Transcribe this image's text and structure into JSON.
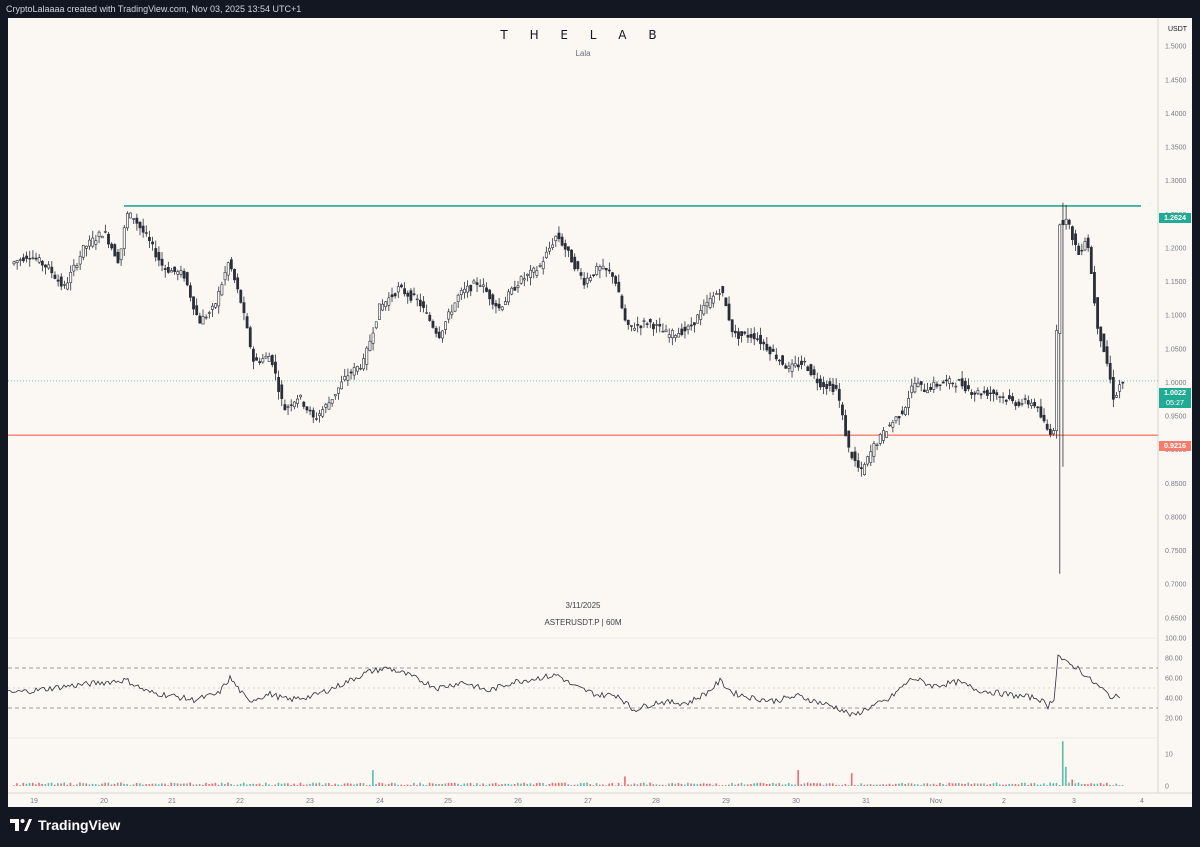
{
  "top_bar": {
    "text": "CryptoLalaaaa created with TradingView.com, Nov 03, 2025 13:54 UTC+1"
  },
  "chart_header": {
    "title": "T H E  L A B",
    "subtitle": "Lala"
  },
  "watermark": {
    "date": "3/11/2025",
    "symbol": "ASTERUSDT.P | 60M"
  },
  "price_axis": {
    "unit": "USDT",
    "ticks": [
      "1.5000",
      "1.4500",
      "1.4000",
      "1.3500",
      "1.3000",
      "1.2500",
      "1.2000",
      "1.1500",
      "1.1000",
      "1.0500",
      "1.0000",
      "0.9500",
      "0.9000",
      "0.8500",
      "0.8000",
      "0.7500",
      "0.7000",
      "0.6500"
    ],
    "tags": {
      "resistance": "1.2624",
      "current_price": "1.0022",
      "countdown": "05:27",
      "support": "0.9216"
    }
  },
  "rsi_axis": {
    "ticks": [
      "100.00",
      "80.00",
      "60.00",
      "40.00",
      "20.00"
    ]
  },
  "volume_axis": {
    "ticks": [
      "10",
      "0"
    ]
  },
  "time_axis": {
    "labels": [
      "19",
      "20",
      "21",
      "22",
      "23",
      "24",
      "25",
      "26",
      "27",
      "28",
      "29",
      "30",
      "31",
      "Nov",
      "2",
      "3",
      "4"
    ]
  },
  "colors": {
    "background": "#fbf8f4",
    "frame": "#131722",
    "resistance_line": "#22ab94",
    "support_line": "#f77c6b",
    "current_price_line": "#22ab94",
    "candle": "#2a2e39",
    "volume_up": "#22ab94",
    "volume_down": "#f23645"
  },
  "brand": {
    "name": "TradingView",
    "logo_icon": "tradingview-logo-icon"
  },
  "chart_data": {
    "type": "candlestick",
    "interval": "60M",
    "price_range": [
      0.62,
      1.53
    ],
    "levels": {
      "resistance": 1.2624,
      "support": 0.9216,
      "last": 1.0022
    },
    "price_path": [
      [
        0,
        1.175
      ],
      [
        20,
        1.19
      ],
      [
        40,
        1.17
      ],
      [
        55,
        1.14
      ],
      [
        75,
        1.2
      ],
      [
        95,
        1.225
      ],
      [
        110,
        1.18
      ],
      [
        118,
        1.25
      ],
      [
        125,
        1.245
      ],
      [
        140,
        1.21
      ],
      [
        155,
        1.17
      ],
      [
        175,
        1.16
      ],
      [
        190,
        1.09
      ],
      [
        205,
        1.11
      ],
      [
        220,
        1.18
      ],
      [
        232,
        1.12
      ],
      [
        245,
        1.03
      ],
      [
        262,
        1.04
      ],
      [
        275,
        0.96
      ],
      [
        290,
        0.98
      ],
      [
        305,
        0.945
      ],
      [
        320,
        0.97
      ],
      [
        338,
        1.01
      ],
      [
        355,
        1.03
      ],
      [
        370,
        1.11
      ],
      [
        390,
        1.14
      ],
      [
        410,
        1.12
      ],
      [
        430,
        1.07
      ],
      [
        450,
        1.13
      ],
      [
        470,
        1.15
      ],
      [
        490,
        1.11
      ],
      [
        510,
        1.15
      ],
      [
        530,
        1.17
      ],
      [
        548,
        1.22
      ],
      [
        560,
        1.19
      ],
      [
        575,
        1.15
      ],
      [
        590,
        1.17
      ],
      [
        605,
        1.16
      ],
      [
        618,
        1.08
      ],
      [
        640,
        1.09
      ],
      [
        660,
        1.07
      ],
      [
        680,
        1.08
      ],
      [
        700,
        1.12
      ],
      [
        712,
        1.14
      ],
      [
        725,
        1.07
      ],
      [
        745,
        1.07
      ],
      [
        760,
        1.05
      ],
      [
        780,
        1.02
      ],
      [
        795,
        1.03
      ],
      [
        810,
        1.0
      ],
      [
        828,
        0.99
      ],
      [
        840,
        0.9
      ],
      [
        852,
        0.865
      ],
      [
        865,
        0.905
      ],
      [
        880,
        0.935
      ],
      [
        895,
        0.96
      ],
      [
        905,
        1.0
      ],
      [
        915,
        0.99
      ],
      [
        935,
        1.0
      ],
      [
        950,
        1.0
      ],
      [
        965,
        0.985
      ],
      [
        985,
        0.985
      ],
      [
        1005,
        0.97
      ],
      [
        1025,
        0.97
      ],
      [
        1040,
        0.925
      ],
      [
        1046,
        0.935
      ],
      [
        1050,
        1.24
      ],
      [
        1058,
        1.24
      ],
      [
        1070,
        1.19
      ],
      [
        1078,
        1.22
      ],
      [
        1088,
        1.09
      ],
      [
        1098,
        1.03
      ],
      [
        1105,
        0.975
      ],
      [
        1112,
        1.0
      ]
    ],
    "rsi": {
      "ylim": [
        0,
        100
      ],
      "bands": [
        70,
        50,
        30
      ],
      "path": [
        [
          0,
          45
        ],
        [
          30,
          48
        ],
        [
          60,
          52
        ],
        [
          90,
          55
        ],
        [
          118,
          58
        ],
        [
          140,
          46
        ],
        [
          165,
          42
        ],
        [
          185,
          38
        ],
        [
          210,
          44
        ],
        [
          222,
          60
        ],
        [
          240,
          37
        ],
        [
          262,
          44
        ],
        [
          280,
          38
        ],
        [
          305,
          42
        ],
        [
          330,
          52
        ],
        [
          360,
          66
        ],
        [
          380,
          70
        ],
        [
          400,
          63
        ],
        [
          430,
          50
        ],
        [
          455,
          56
        ],
        [
          480,
          47
        ],
        [
          505,
          56
        ],
        [
          530,
          60
        ],
        [
          550,
          63
        ],
        [
          565,
          52
        ],
        [
          590,
          43
        ],
        [
          610,
          43
        ],
        [
          625,
          28
        ],
        [
          650,
          36
        ],
        [
          680,
          35
        ],
        [
          700,
          46
        ],
        [
          712,
          57
        ],
        [
          725,
          45
        ],
        [
          745,
          40
        ],
        [
          765,
          37
        ],
        [
          790,
          42
        ],
        [
          810,
          36
        ],
        [
          830,
          30
        ],
        [
          845,
          22
        ],
        [
          860,
          30
        ],
        [
          880,
          38
        ],
        [
          895,
          52
        ],
        [
          905,
          60
        ],
        [
          925,
          52
        ],
        [
          950,
          56
        ],
        [
          970,
          48
        ],
        [
          990,
          45
        ],
        [
          1010,
          42
        ],
        [
          1030,
          40
        ],
        [
          1040,
          32
        ],
        [
          1046,
          40
        ],
        [
          1050,
          83
        ],
        [
          1058,
          75
        ],
        [
          1070,
          70
        ],
        [
          1080,
          60
        ],
        [
          1095,
          48
        ],
        [
          1105,
          40
        ],
        [
          1112,
          42
        ]
      ]
    },
    "volume": {
      "ylim": [
        0,
        15
      ],
      "spikes": [
        [
          360,
          "up",
          5
        ],
        [
          610,
          "down",
          3
        ],
        [
          783,
          "down",
          5
        ],
        [
          838,
          "down",
          4
        ],
        [
          1048,
          "up",
          14
        ],
        [
          1052,
          "up",
          6
        ],
        [
          1058,
          "down",
          2
        ]
      ]
    }
  }
}
